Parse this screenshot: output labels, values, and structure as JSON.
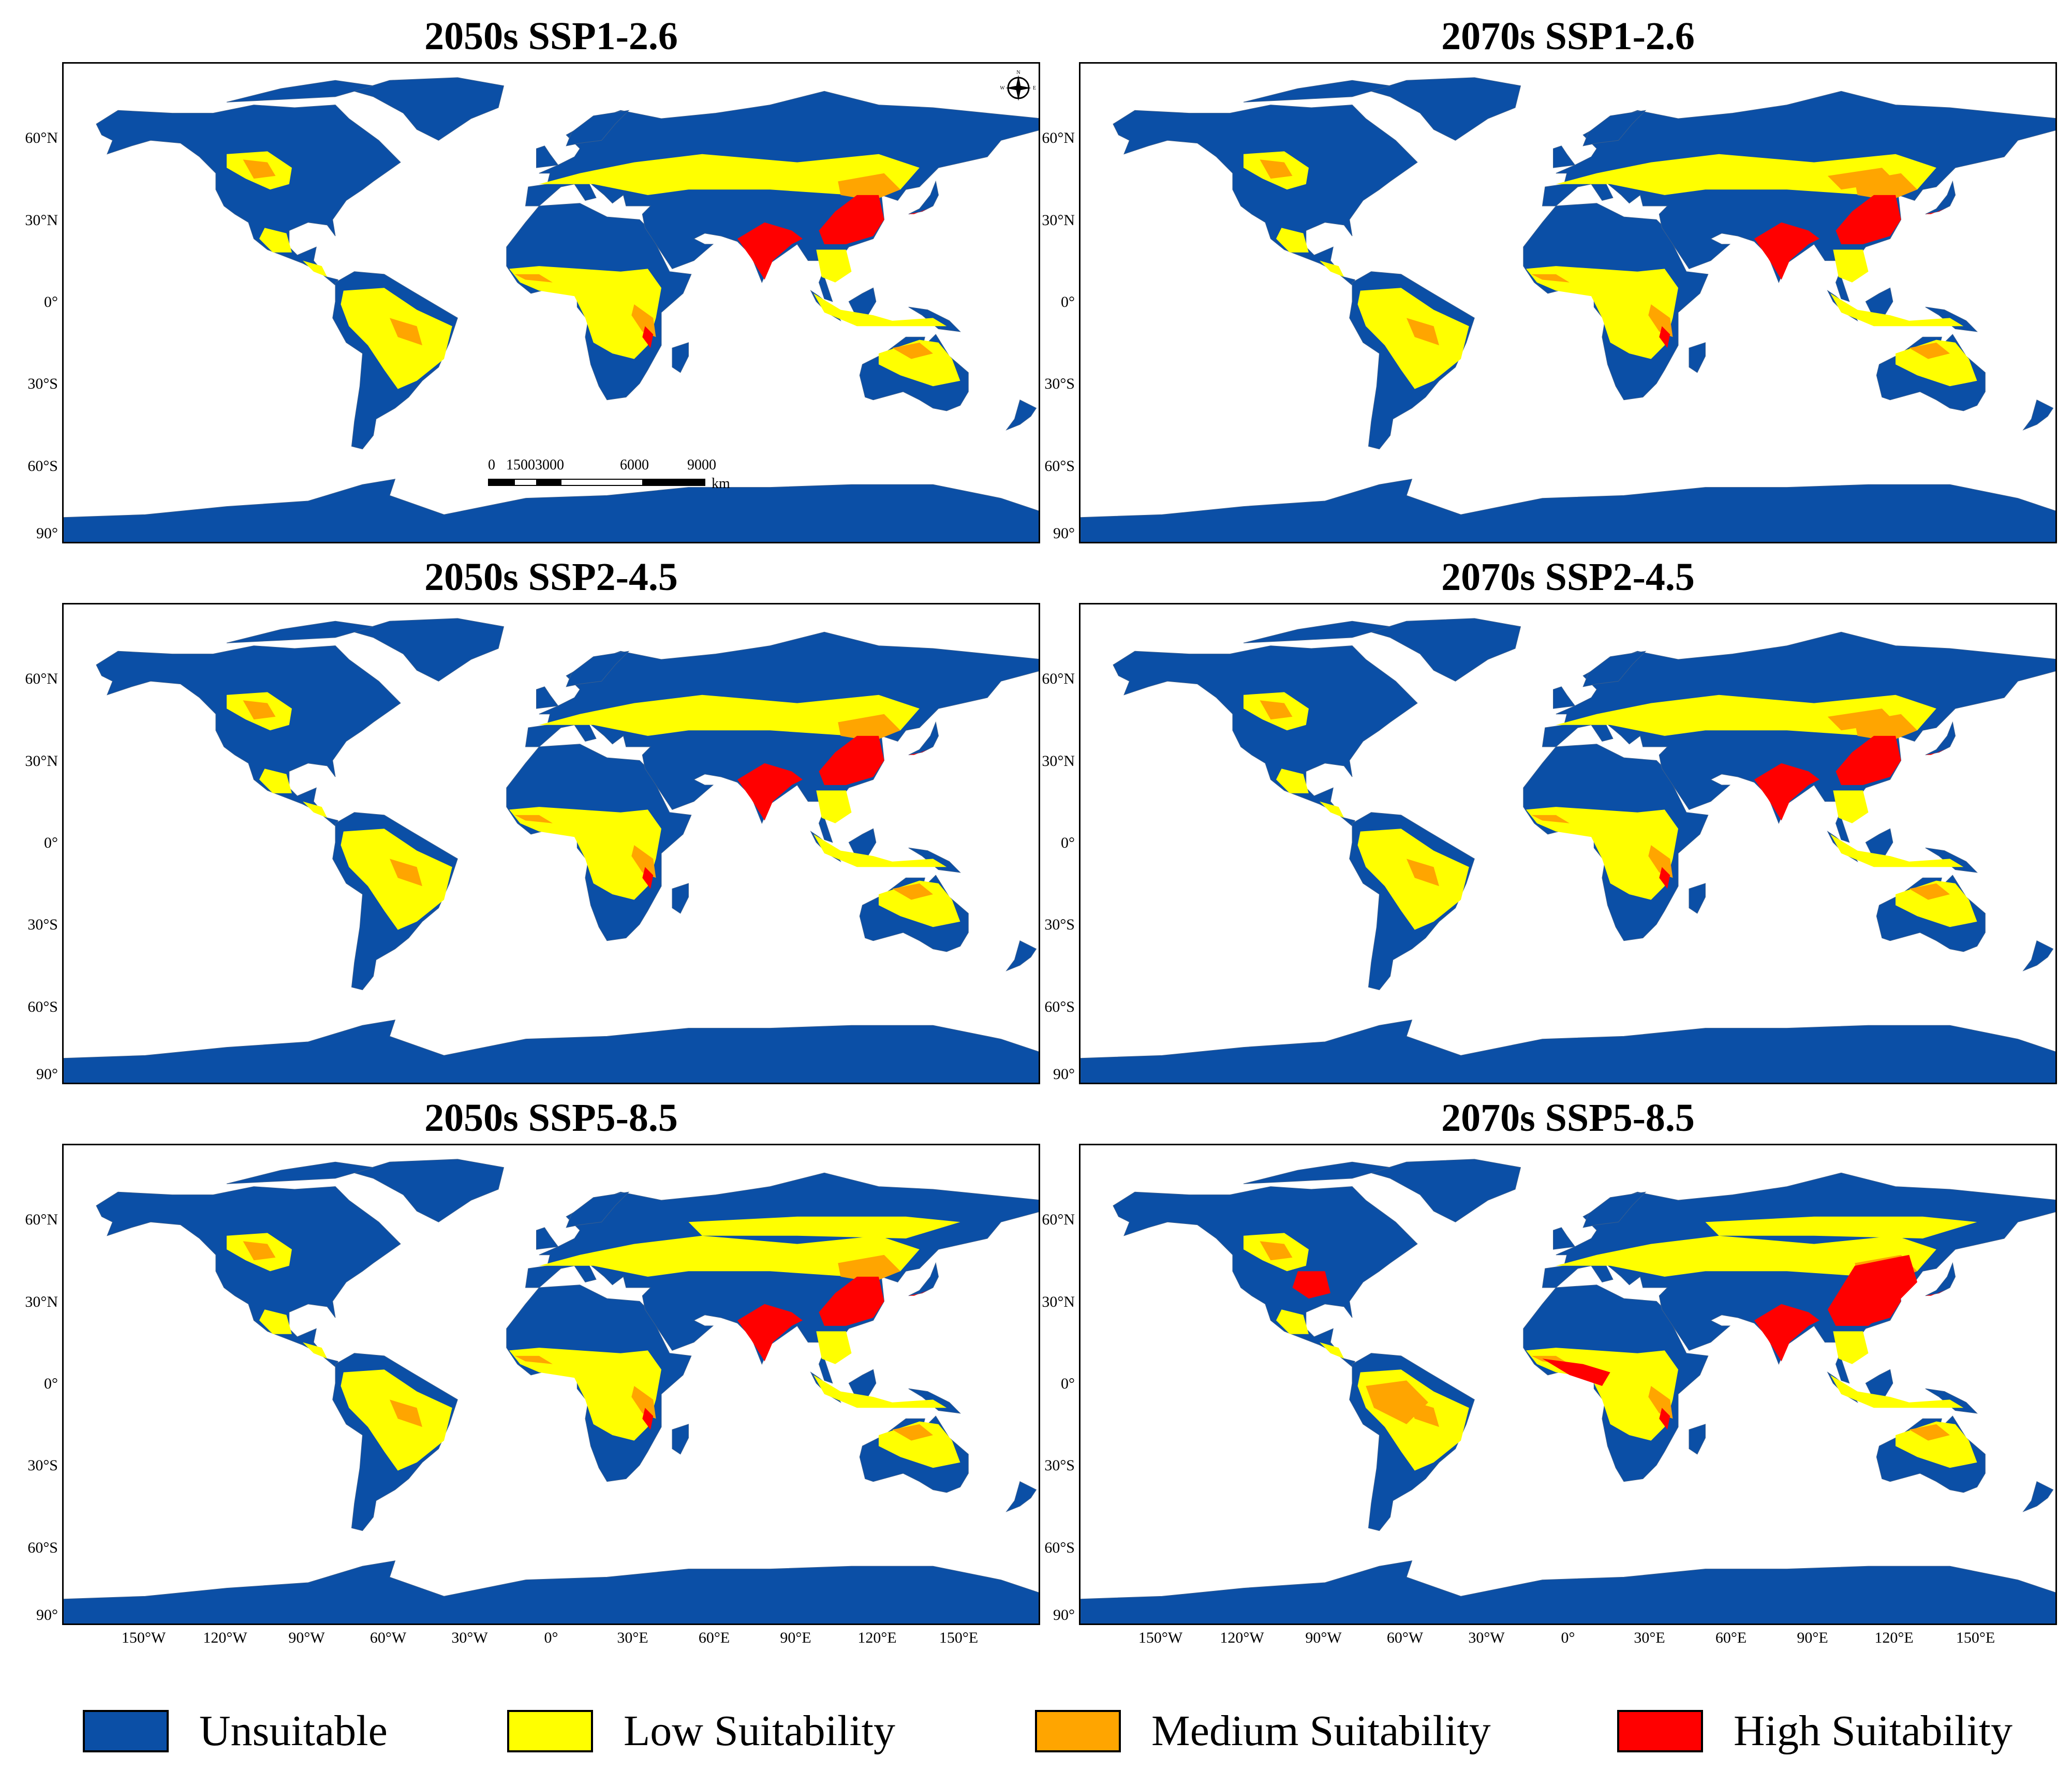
{
  "panels": [
    {
      "title": "2050s SSP1-2.6",
      "show_scale": true,
      "show_compass": true
    },
    {
      "title": "2070s SSP1-2.6",
      "show_scale": false,
      "show_compass": false
    },
    {
      "title": "2050s SSP2-4.5",
      "show_scale": false,
      "show_compass": false
    },
    {
      "title": "2070s SSP2-4.5",
      "show_scale": false,
      "show_compass": false
    },
    {
      "title": "2050s SSP5-8.5",
      "show_scale": false,
      "show_compass": false
    },
    {
      "title": "2070s SSP5-8.5",
      "show_scale": false,
      "show_compass": false
    }
  ],
  "lat_labels": [
    "60°N",
    "30°N",
    "0°",
    "30°S",
    "60°S",
    "90°"
  ],
  "lon_labels": [
    "150°W",
    "120°W",
    "90°W",
    "60°W",
    "30°W",
    "0°",
    "30°E",
    "60°E",
    "90°E",
    "120°E",
    "150°E"
  ],
  "scale_bar": {
    "ticks": [
      "0",
      "15003000",
      "6000",
      "9000"
    ],
    "unit": "km"
  },
  "compass": {
    "n": "N",
    "e": "E",
    "w": "W"
  },
  "legend": [
    {
      "label": "Unsuitable",
      "color": "#0b4fa6"
    },
    {
      "label": "Low Suitability",
      "color": "#ffff00"
    },
    {
      "label": "Medium Suitability",
      "color": "#ffa500"
    },
    {
      "label": "High Suitability",
      "color": "#ff0000"
    }
  ],
  "colors": {
    "unsuitable": "#0b4fa6",
    "low": "#ffff00",
    "medium": "#ffa500",
    "high": "#ff0000"
  }
}
